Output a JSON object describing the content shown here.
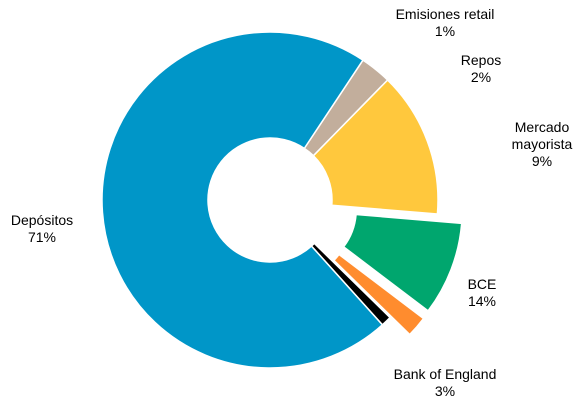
{
  "chart_data": {
    "type": "pie",
    "style": "donut",
    "categories": [
      "Emisiones retail",
      "Repos",
      "Mercado mayorista",
      "BCE",
      "Bank of England",
      "Depósitos"
    ],
    "values": [
      1,
      2,
      9,
      14,
      3,
      71
    ],
    "value_labels": [
      "1%",
      "2%",
      "9%",
      "14%",
      "3%",
      "71%"
    ],
    "label_lines": [
      [
        "Emisiones retail",
        "1%"
      ],
      [
        "Repos",
        "2%"
      ],
      [
        "Mercado",
        "mayorista",
        "9%"
      ],
      [
        "BCE",
        "14%"
      ],
      [
        "Bank of England",
        "3%"
      ],
      [
        "Depósitos",
        "71%"
      ]
    ],
    "colors": [
      "#000000",
      "#FF8C2E",
      "#00A66E",
      "#FFC83D",
      "#C2AE9C",
      "#0096C8"
    ],
    "exploded": [
      false,
      true,
      true,
      false,
      false,
      false
    ],
    "title": "",
    "legend": "none"
  }
}
